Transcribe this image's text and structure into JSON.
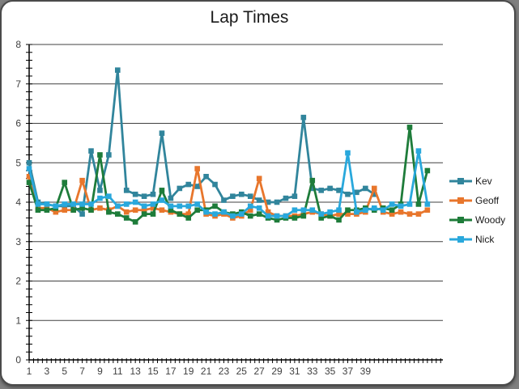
{
  "chart_data": {
    "type": "line",
    "title": "Lap Times",
    "xlabel": "",
    "ylabel": "",
    "ylim": [
      0,
      8
    ],
    "y_ticks": [
      0,
      1,
      2,
      3,
      4,
      5,
      6,
      7,
      8
    ],
    "y_minor_tick_step": 0.2,
    "x_categories_max": 46,
    "x_tick_labels": [
      "1",
      "3",
      "5",
      "7",
      "9",
      "11",
      "13",
      "15",
      "17",
      "19",
      "21",
      "23",
      "25",
      "27",
      "29",
      "31",
      "33",
      "35",
      "37",
      "39"
    ],
    "x_label_positions": [
      1,
      3,
      5,
      7,
      9,
      11,
      13,
      15,
      17,
      19,
      21,
      23,
      25,
      27,
      29,
      31,
      33,
      35,
      37,
      39
    ],
    "grid": "horizontal-major",
    "legend_position": "right",
    "marker": "square",
    "series": [
      {
        "name": "Kev",
        "color": "#31859C",
        "values": [
          5.0,
          4.0,
          3.95,
          3.9,
          3.9,
          3.9,
          3.7,
          5.3,
          4.3,
          5.2,
          7.35,
          4.3,
          4.2,
          4.15,
          4.2,
          5.75,
          4.1,
          4.35,
          4.45,
          4.4,
          4.65,
          4.45,
          4.05,
          4.15,
          4.2,
          4.15,
          4.05,
          4.0,
          4.0,
          4.1,
          4.15,
          6.15,
          4.35,
          4.3,
          4.35,
          4.3,
          4.2,
          4.25,
          4.35,
          4.2
        ]
      },
      {
        "name": "Geoff",
        "color": "#E8762C",
        "values": [
          4.65,
          3.85,
          3.85,
          3.75,
          3.8,
          3.8,
          4.55,
          3.8,
          3.85,
          3.8,
          3.9,
          3.75,
          3.8,
          3.8,
          3.85,
          3.8,
          3.75,
          3.7,
          3.7,
          4.85,
          3.7,
          3.65,
          3.7,
          3.6,
          3.65,
          3.8,
          4.6,
          3.75,
          3.65,
          3.65,
          3.65,
          3.7,
          3.75,
          3.7,
          3.65,
          3.7,
          3.7,
          3.7,
          3.75,
          4.35,
          3.75,
          3.7,
          3.75,
          3.7,
          3.7,
          3.8
        ]
      },
      {
        "name": "Woody",
        "color": "#1E7C3A",
        "values": [
          4.5,
          3.8,
          3.8,
          3.85,
          4.5,
          3.8,
          3.85,
          3.8,
          5.2,
          3.75,
          3.7,
          3.6,
          3.5,
          3.7,
          3.7,
          4.3,
          3.8,
          3.7,
          3.6,
          3.8,
          3.8,
          3.9,
          3.75,
          3.7,
          3.75,
          3.65,
          3.7,
          3.6,
          3.55,
          3.6,
          3.6,
          3.65,
          4.55,
          3.6,
          3.65,
          3.55,
          3.8,
          3.8,
          3.85,
          3.8,
          3.85,
          3.8,
          3.95,
          5.9,
          3.95,
          4.8
        ]
      },
      {
        "name": "Nick",
        "color": "#29A8DC",
        "values": [
          4.85,
          3.95,
          3.95,
          3.9,
          3.95,
          3.95,
          3.95,
          3.95,
          4.1,
          4.15,
          3.9,
          3.95,
          4.0,
          3.9,
          3.95,
          4.05,
          3.9,
          3.9,
          3.9,
          3.95,
          3.75,
          3.7,
          3.75,
          3.65,
          3.7,
          3.9,
          3.85,
          3.65,
          3.65,
          3.65,
          3.8,
          3.8,
          3.8,
          3.7,
          3.75,
          3.8,
          5.25,
          3.75,
          3.8,
          3.85,
          3.8,
          3.95,
          3.9,
          3.95,
          5.3,
          3.95
        ]
      }
    ],
    "axis_color": "#000000",
    "gridline_color": "#404040",
    "tick_label_color": "#3f3f3f"
  }
}
